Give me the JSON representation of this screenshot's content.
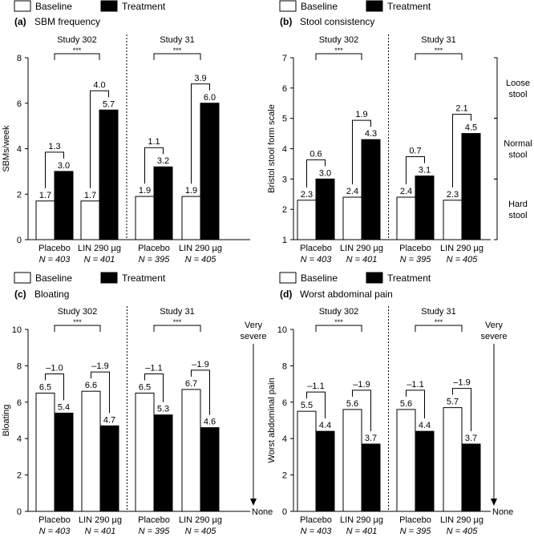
{
  "legend": {
    "baseline": "Baseline",
    "treatment": "Treatment"
  },
  "significance": "***",
  "group_notes": {
    "placebo": "Placebo",
    "lin": "LIN 290 µg",
    "n403": "N = 403",
    "n401": "N = 401",
    "n395": "N = 395",
    "n405": "N = 405"
  },
  "chart_data": [
    {
      "panel": "(a)",
      "type": "bar",
      "title": "SBM frequency",
      "ylabel": "SBMs/week",
      "ylim": [
        0,
        8
      ],
      "yticks": [
        "0",
        "2",
        "4",
        "6",
        "8"
      ],
      "studies": [
        "Study 302",
        "Study 31"
      ],
      "categories": [
        "Placebo",
        "LIN 290 µg",
        "Placebo",
        "LIN 290 µg"
      ],
      "n_labels": [
        "N = 403",
        "N = 401",
        "N = 395",
        "N = 405"
      ],
      "series": [
        {
          "name": "Baseline",
          "values": [
            1.7,
            1.7,
            1.9,
            1.9
          ],
          "labels": [
            "1.7",
            "1.7",
            "1.9",
            "1.9"
          ]
        },
        {
          "name": "Treatment",
          "values": [
            3.0,
            5.7,
            3.2,
            6.0
          ],
          "labels": [
            "3.0",
            "5.7",
            "3.2",
            "6.0"
          ]
        }
      ],
      "changes": [
        "1.3",
        "4.0",
        "1.1",
        "3.9"
      ],
      "significance": [
        "***",
        "***"
      ]
    },
    {
      "panel": "(b)",
      "type": "bar",
      "title": "Stool consistency",
      "ylabel": "Bristol stool form scale",
      "ylim": [
        1,
        7
      ],
      "yticks": [
        "1",
        "2",
        "3",
        "4",
        "5",
        "6",
        "7"
      ],
      "studies": [
        "Study 302",
        "Study 31"
      ],
      "categories": [
        "Placebo",
        "LIN 290 µg",
        "Placebo",
        "LIN 290 µg"
      ],
      "n_labels": [
        "N = 403",
        "N = 401",
        "N = 395",
        "N = 405"
      ],
      "series": [
        {
          "name": "Baseline",
          "values": [
            2.3,
            2.4,
            2.4,
            2.3
          ],
          "labels": [
            "2.3",
            "2.4",
            "2.4",
            "2.3"
          ]
        },
        {
          "name": "Treatment",
          "values": [
            3.0,
            4.3,
            3.1,
            4.5
          ],
          "labels": [
            "3.0",
            "4.3",
            "3.1",
            "4.5"
          ]
        }
      ],
      "changes": [
        "0.6",
        "1.9",
        "0.7",
        "2.1"
      ],
      "significance": [
        "***",
        "***"
      ],
      "side_scale": [
        {
          "line1": "Loose",
          "line2": "stool",
          "from": 5,
          "to": 7
        },
        {
          "line1": "Normal",
          "line2": "stool",
          "from": 3,
          "to": 5
        },
        {
          "line1": "Hard",
          "line2": "stool",
          "from": 1,
          "to": 3
        }
      ]
    },
    {
      "panel": "(c)",
      "type": "bar",
      "title": "Bloating",
      "ylabel": "Bloating",
      "ylim": [
        0,
        10
      ],
      "yticks": [
        "0",
        "2",
        "4",
        "6",
        "8",
        "10"
      ],
      "studies": [
        "Study 302",
        "Study 31"
      ],
      "categories": [
        "Placebo",
        "LIN 290 µg",
        "Placebo",
        "LIN 290 µg"
      ],
      "n_labels": [
        "N = 403",
        "N = 401",
        "N = 395",
        "N = 405"
      ],
      "series": [
        {
          "name": "Baseline",
          "values": [
            6.5,
            6.6,
            6.5,
            6.7
          ],
          "labels": [
            "6.5",
            "6.6",
            "6.5",
            "6.7"
          ]
        },
        {
          "name": "Treatment",
          "values": [
            5.4,
            4.7,
            5.3,
            4.6
          ],
          "labels": [
            "5.4",
            "4.7",
            "5.3",
            "4.6"
          ]
        }
      ],
      "changes": [
        "–1.0",
        "–1.9",
        "–1.1",
        "–1.9"
      ],
      "significance": [
        "***",
        "***"
      ],
      "severity": {
        "top1": "Very",
        "top2": "severe",
        "bottom": "None"
      }
    },
    {
      "panel": "(d)",
      "type": "bar",
      "title": "Worst abdominal pain",
      "ylabel": "Worst abdominal pain",
      "ylim": [
        0,
        10
      ],
      "yticks": [
        "0",
        "2",
        "4",
        "6",
        "8",
        "10"
      ],
      "studies": [
        "Study 302",
        "Study 31"
      ],
      "categories": [
        "Placebo",
        "LIN 290 µg",
        "Placebo",
        "LIN 290 µg"
      ],
      "n_labels": [
        "N = 403",
        "N = 401",
        "N = 395",
        "N = 405"
      ],
      "series": [
        {
          "name": "Baseline",
          "values": [
            5.5,
            5.6,
            5.6,
            5.7
          ],
          "labels": [
            "5.5",
            "5.6",
            "5.6",
            "5.7"
          ]
        },
        {
          "name": "Treatment",
          "values": [
            4.4,
            3.7,
            4.4,
            3.7
          ],
          "labels": [
            "4.4",
            "3.7",
            "4.4",
            "3.7"
          ]
        }
      ],
      "changes": [
        "–1.1",
        "–1.9",
        "–1.1",
        "–1.9"
      ],
      "significance": [
        "***",
        "***"
      ],
      "severity": {
        "top1": "Very",
        "top2": "severe",
        "bottom": "None"
      }
    }
  ]
}
